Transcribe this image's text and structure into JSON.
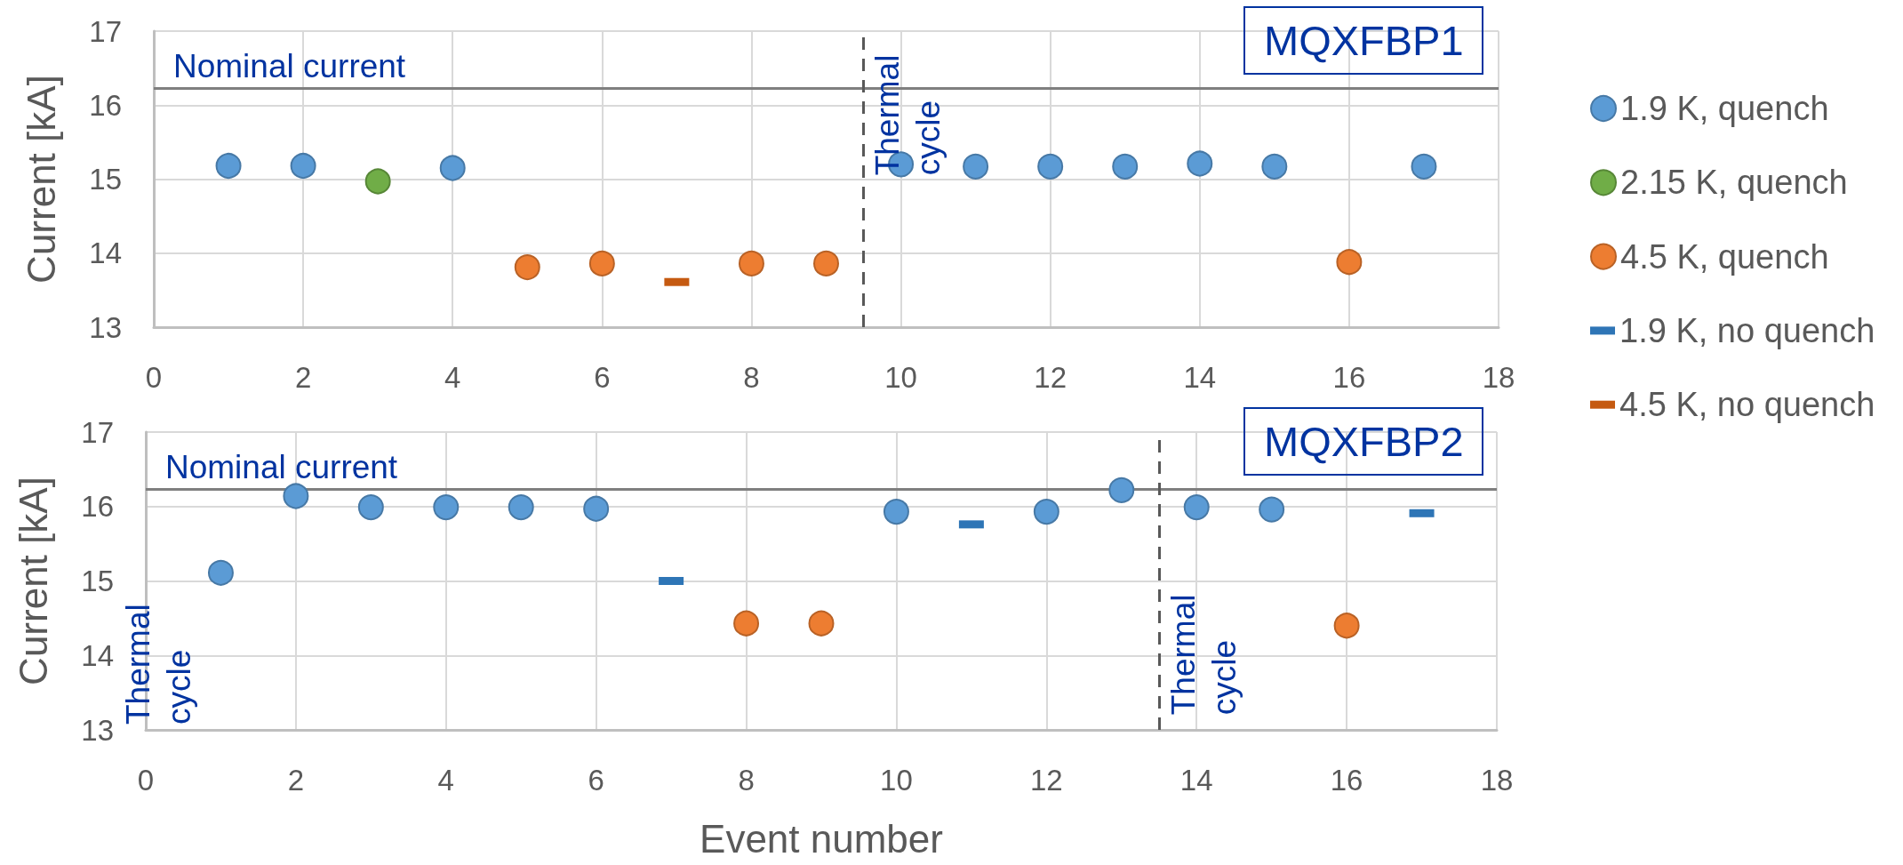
{
  "chart_data": [
    {
      "type": "scatter",
      "title": "MQXFBP1",
      "ylabel": "Current [kA]",
      "xlim": [
        0,
        18
      ],
      "xticks": [
        0,
        2,
        4,
        6,
        8,
        10,
        12,
        14,
        16,
        18
      ],
      "ylim": [
        13,
        17
      ],
      "yticks": [
        13,
        14,
        15,
        16,
        17
      ],
      "grid": true,
      "legend": "right",
      "series": [
        {
          "name": "1.9 K, quench",
          "color": "#5b9bd5",
          "marker": "circle",
          "x": [
            1,
            2,
            4,
            10,
            11,
            12,
            13,
            14,
            15,
            17
          ],
          "values": [
            15.18,
            15.18,
            15.15,
            15.2,
            15.17,
            15.17,
            15.17,
            15.21,
            15.17,
            15.17
          ]
        },
        {
          "name": "2.15 K, quench",
          "color": "#70ad47",
          "marker": "circle",
          "x": [
            3
          ],
          "values": [
            14.97
          ]
        },
        {
          "name": "4.5 K, quench",
          "color": "#ed7d31",
          "marker": "circle",
          "x": [
            5,
            6,
            8,
            9,
            16
          ],
          "values": [
            13.81,
            13.86,
            13.86,
            13.86,
            13.88
          ]
        },
        {
          "name": "4.5 K, no quench",
          "color": "#c55a11",
          "marker": "square",
          "x": [
            7
          ],
          "values": [
            13.61
          ]
        }
      ],
      "ref_lines": [
        {
          "axis": "y",
          "value": 16.23,
          "label": "Nominal current",
          "color": "#7f7f7f",
          "line_style": "solid"
        },
        {
          "axis": "x",
          "value": 9.5,
          "color": "#595959",
          "line_style": "dashed"
        }
      ],
      "annotations": [
        {
          "text": "Thermal\ncycle",
          "x": 9.5,
          "y": 15.05
        }
      ]
    },
    {
      "type": "scatter",
      "title": "MQXFBP2",
      "xlabel": "Event number",
      "ylabel": "Current [kA]",
      "xlim": [
        0,
        18
      ],
      "xticks": [
        0,
        2,
        4,
        6,
        8,
        10,
        12,
        14,
        16,
        18
      ],
      "ylim": [
        13,
        17
      ],
      "yticks": [
        13,
        14,
        15,
        16,
        17
      ],
      "grid": true,
      "legend": "right",
      "series": [
        {
          "name": "1.9 K, quench",
          "color": "#5b9bd5",
          "marker": "circle",
          "x": [
            1,
            2,
            3,
            4,
            5,
            6,
            10,
            12,
            13,
            14,
            15
          ],
          "values": [
            15.11,
            16.14,
            15.99,
            15.99,
            15.99,
            15.97,
            15.93,
            15.93,
            16.22,
            15.99,
            15.96
          ]
        },
        {
          "name": "4.5 K, quench",
          "color": "#ed7d31",
          "marker": "circle",
          "x": [
            8,
            9,
            16
          ],
          "values": [
            14.43,
            14.43,
            14.4
          ]
        },
        {
          "name": "1.9 K, no quench",
          "color": "#2e75b6",
          "marker": "square",
          "x": [
            7,
            11,
            17
          ],
          "values": [
            15.0,
            15.76,
            15.91
          ]
        }
      ],
      "ref_lines": [
        {
          "axis": "y",
          "value": 16.23,
          "label": "Nominal current",
          "color": "#7f7f7f",
          "line_style": "solid"
        },
        {
          "axis": "x",
          "value": 13.5,
          "color": "#595959",
          "line_style": "dashed"
        }
      ],
      "annotations": [
        "Thermal\ncycle",
        {
          "text": "Thermal\ncycle",
          "x": 13.5,
          "y": 13.2
        }
      ]
    }
  ]
}
